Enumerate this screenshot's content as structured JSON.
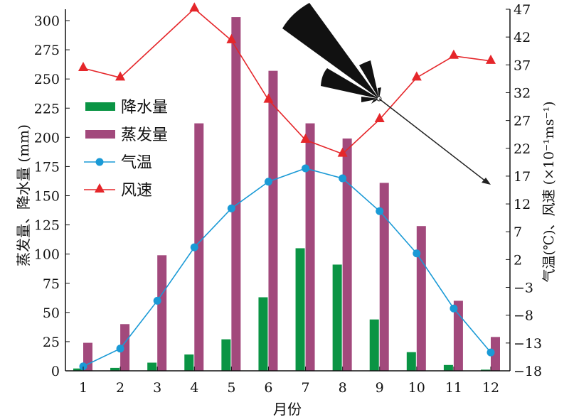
{
  "chart_data": {
    "type": "bar",
    "title": "",
    "xlabel": "月份",
    "ylabel": "蒸发量、降水量 (mm)",
    "ylabel_right": "气温(℃)、风速 (×10⁻¹ms⁻¹)",
    "categories": [
      "1",
      "2",
      "3",
      "4",
      "5",
      "6",
      "7",
      "8",
      "9",
      "10",
      "11",
      "12"
    ],
    "ylim": [
      0,
      300
    ],
    "yticks": [
      "0",
      "25",
      "50",
      "75",
      "100",
      "125",
      "150",
      "175",
      "200",
      "225",
      "250",
      "275",
      "300"
    ],
    "ylim_right": [
      -18,
      47
    ],
    "yticks_right": [
      "−18",
      "−13",
      "−8",
      "−3",
      "2",
      "7",
      "12",
      "17",
      "22",
      "27",
      "32",
      "37",
      "42",
      "47"
    ],
    "legend_position": "left-middle",
    "series": [
      {
        "name": "降水量",
        "type": "bar",
        "axis": "left",
        "color": "#0a9444",
        "values": [
          2,
          2.5,
          7,
          14,
          27,
          63,
          105,
          91,
          44,
          16,
          5,
          1
        ]
      },
      {
        "name": "蒸发量",
        "type": "bar",
        "axis": "left",
        "color": "#a2497c",
        "values": [
          24,
          40,
          99,
          212,
          303,
          257,
          212,
          199,
          161,
          124,
          60,
          29
        ]
      },
      {
        "name": "气温",
        "type": "line",
        "marker": "circle",
        "axis": "right",
        "color": "#1a9ad6",
        "values": [
          -17.2,
          -14,
          -5.4,
          4.2,
          11.2,
          16,
          18.4,
          16.6,
          10.7,
          3.1,
          -6.8,
          -14.7
        ]
      },
      {
        "name": "风速",
        "type": "line",
        "marker": "triangle",
        "axis": "right",
        "color": "#e5262a",
        "values": [
          36.4,
          34.7,
          null,
          47.1,
          41.4,
          30.7,
          23.5,
          21,
          27.2,
          34.7,
          38.6,
          37.7
        ]
      }
    ]
  }
}
